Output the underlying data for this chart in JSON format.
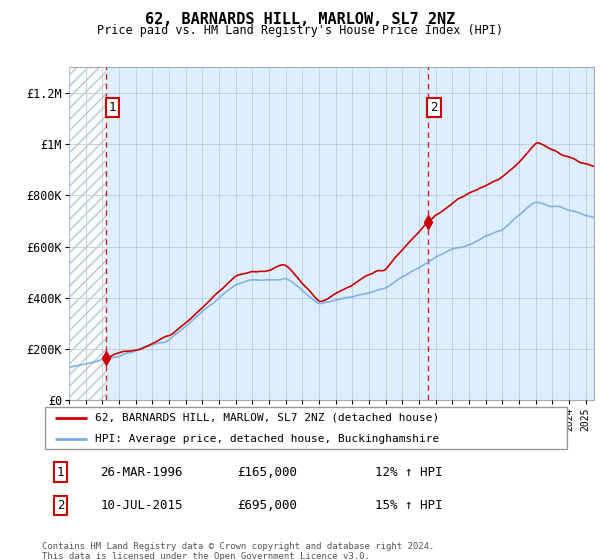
{
  "title": "62, BARNARDS HILL, MARLOW, SL7 2NZ",
  "subtitle": "Price paid vs. HM Land Registry's House Price Index (HPI)",
  "ylim": [
    0,
    1300000
  ],
  "yticks": [
    0,
    200000,
    400000,
    600000,
    800000,
    1000000,
    1200000
  ],
  "ytick_labels": [
    "£0",
    "£200K",
    "£400K",
    "£600K",
    "£800K",
    "£1M",
    "£1.2M"
  ],
  "sale1_date_x": 1996.23,
  "sale1_price": 165000,
  "sale2_date_x": 2015.53,
  "sale2_price": 695000,
  "hpi_line_color": "#7aaddc",
  "price_line_color": "#cc0000",
  "sale_marker_color": "#cc0000",
  "dashed_vline_color": "#cc0000",
  "grid_color": "#cccccc",
  "chart_bg_color": "#ddeeff",
  "legend_label_price": "62, BARNARDS HILL, MARLOW, SL7 2NZ (detached house)",
  "legend_label_hpi": "HPI: Average price, detached house, Buckinghamshire",
  "table_row1": [
    "1",
    "26-MAR-1996",
    "£165,000",
    "12% ↑ HPI"
  ],
  "table_row2": [
    "2",
    "10-JUL-2015",
    "£695,000",
    "15% ↑ HPI"
  ],
  "footnote": "Contains HM Land Registry data © Crown copyright and database right 2024.\nThis data is licensed under the Open Government Licence v3.0.",
  "xmin": 1994.0,
  "xmax": 2025.5
}
